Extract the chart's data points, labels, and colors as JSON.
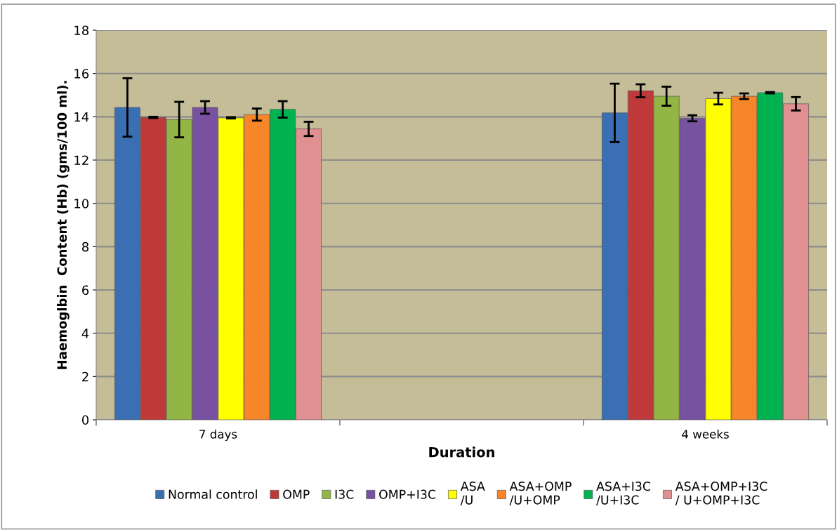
{
  "chart_data": {
    "type": "bar",
    "xlabel": "Duration",
    "ylabel": "Haemoglbin  Content (Hb) (gms/100 ml).",
    "categories": [
      "7 days",
      null,
      "4 weeks"
    ],
    "series": [
      {
        "name": "Normal control",
        "color": "#3a6fb3",
        "values": [
          14.43,
          null,
          14.18
        ],
        "errors": [
          1.35,
          null,
          1.35
        ]
      },
      {
        "name": "OMP",
        "color": "#c0393a",
        "values": [
          13.97,
          null,
          15.2
        ],
        "errors": [
          0.03,
          null,
          0.3
        ]
      },
      {
        "name": "I3C",
        "color": "#93b545",
        "values": [
          13.87,
          null,
          14.95
        ],
        "errors": [
          0.82,
          null,
          0.44
        ]
      },
      {
        "name": "OMP+I3C",
        "color": "#7851a0",
        "values": [
          14.43,
          null,
          13.93
        ],
        "errors": [
          0.29,
          null,
          0.14
        ]
      },
      {
        "name": "ASA\n/U",
        "color": "#ffff00",
        "values": [
          13.95,
          null,
          14.84
        ],
        "errors": [
          0.03,
          null,
          0.27
        ]
      },
      {
        "name": "ASA+OMP\n/U+OMP",
        "color": "#f7862a",
        "values": [
          14.1,
          null,
          14.95
        ],
        "errors": [
          0.28,
          null,
          0.13
        ]
      },
      {
        "name": "ASA+I3C\n/U+I3C",
        "color": "#00b350",
        "values": [
          14.34,
          null,
          15.11
        ],
        "errors": [
          0.38,
          null,
          0.03
        ]
      },
      {
        "name": "ASA+OMP+I3C\n/ U+OMP+I3C",
        "color": "#e09090",
        "values": [
          13.44,
          null,
          14.6
        ],
        "errors": [
          0.33,
          null,
          0.31
        ]
      }
    ],
    "ylim": [
      0,
      18
    ],
    "yticks": [
      0,
      2,
      4,
      6,
      8,
      10,
      12,
      14,
      16,
      18
    ],
    "grid": "y",
    "legend": "bottom"
  }
}
